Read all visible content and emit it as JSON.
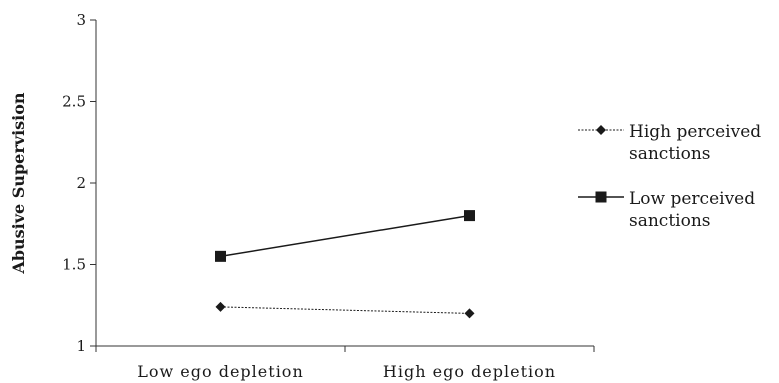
{
  "chart_data": {
    "type": "line",
    "ylabel": "Abusive Supervision",
    "xlabel": "",
    "categories": [
      "Low ego depletion",
      "High ego depletion"
    ],
    "ylim": [
      1,
      3
    ],
    "yticks": [
      "1",
      "1.5",
      "2",
      "2.5",
      "3"
    ],
    "grid": false,
    "legend_position": "right",
    "series": [
      {
        "name_lines": [
          "High perceived",
          "sanctions"
        ],
        "values": [
          1.24,
          1.2
        ],
        "marker": "diamond",
        "line_style": "dotted",
        "color": "#1a1a1a"
      },
      {
        "name_lines": [
          "Low perceived",
          "sanctions"
        ],
        "values": [
          1.55,
          1.8
        ],
        "marker": "square",
        "line_style": "solid",
        "color": "#1a1a1a"
      }
    ]
  }
}
